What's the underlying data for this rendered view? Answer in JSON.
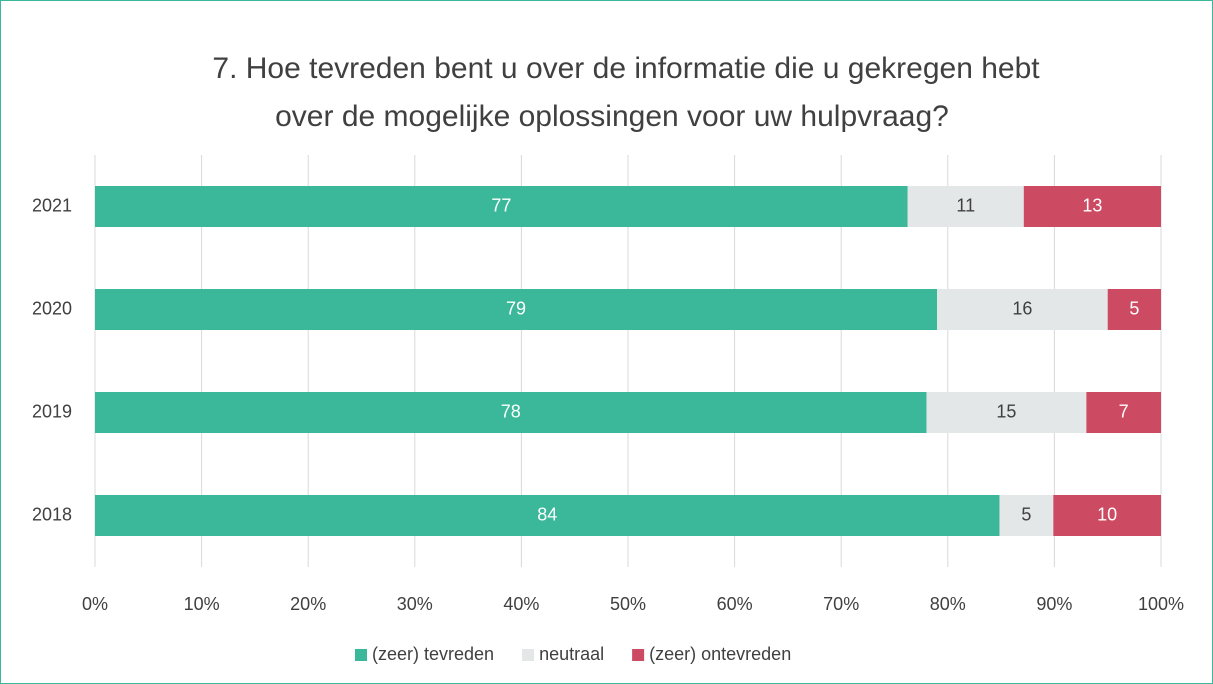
{
  "chart_data": {
    "type": "bar",
    "orientation": "horizontal",
    "stacked": "percent",
    "title": [
      "7. Hoe tevreden bent u over de informatie die u gekregen hebt",
      "over de mogelijke oplossingen voor uw hulpvraag?"
    ],
    "categories": [
      "2021",
      "2020",
      "2019",
      "2018"
    ],
    "series": [
      {
        "name": "(zeer) tevreden",
        "color": "#3bb79a",
        "label_color": "#ffffff",
        "values": [
          77,
          79,
          78,
          84
        ]
      },
      {
        "name": "neutraal",
        "color": "#e4e7e7",
        "label_color": "#404040",
        "values": [
          11,
          16,
          15,
          5
        ]
      },
      {
        "name": "(zeer) ontevreden",
        "color": "#cc4a62",
        "label_color": "#ffffff",
        "values": [
          13,
          5,
          7,
          10
        ]
      }
    ],
    "xlim": [
      0,
      100
    ],
    "xticks": [
      {
        "value": 0,
        "label": "0%"
      },
      {
        "value": 10,
        "label": "10%"
      },
      {
        "value": 20,
        "label": "20%"
      },
      {
        "value": 30,
        "label": "30%"
      },
      {
        "value": 40,
        "label": "40%"
      },
      {
        "value": 50,
        "label": "50%"
      },
      {
        "value": 60,
        "label": "60%"
      },
      {
        "value": 70,
        "label": "70%"
      },
      {
        "value": 80,
        "label": "80%"
      },
      {
        "value": 90,
        "label": "90%"
      },
      {
        "value": 100,
        "label": "100%"
      }
    ],
    "grid": true,
    "legend": "bottom"
  }
}
